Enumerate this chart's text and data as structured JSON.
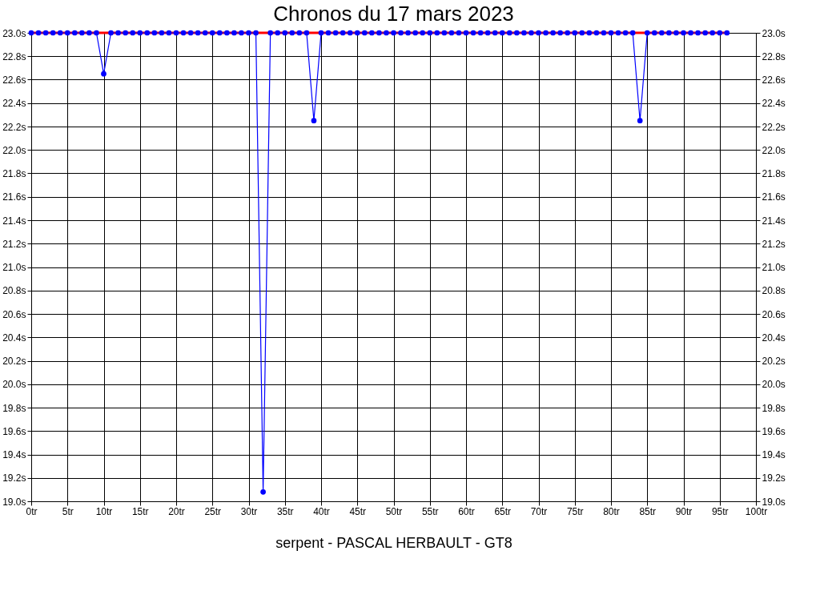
{
  "chart_data": {
    "type": "line",
    "title": "Chronos du 17 mars 2023",
    "xlabel": "serpent - PASCAL HERBAULT - GT8",
    "x": [
      0,
      1,
      2,
      3,
      4,
      5,
      6,
      7,
      8,
      9,
      10,
      11,
      12,
      13,
      14,
      15,
      16,
      17,
      18,
      19,
      20,
      21,
      22,
      23,
      24,
      25,
      26,
      27,
      28,
      29,
      30,
      31,
      32,
      33,
      34,
      35,
      36,
      37,
      38,
      39,
      40,
      41,
      42,
      43,
      44,
      45,
      46,
      47,
      48,
      49,
      50,
      51,
      52,
      53,
      54,
      55,
      56,
      57,
      58,
      59,
      60,
      61,
      62,
      63,
      64,
      65,
      66,
      67,
      68,
      69,
      70,
      71,
      72,
      73,
      74,
      75,
      76,
      77,
      78,
      79,
      80,
      81,
      82,
      83,
      84,
      85,
      86,
      87,
      88,
      89,
      90,
      91,
      92,
      93,
      94,
      95,
      96
    ],
    "series": [
      {
        "color": "#ff0000",
        "marker": "none",
        "values": [
          23.0,
          23.0,
          23.0,
          23.0,
          23.0,
          23.0,
          23.0,
          23.0,
          23.0,
          23.0,
          23.0,
          23.0,
          23.0,
          23.0,
          23.0,
          23.0,
          23.0,
          23.0,
          23.0,
          23.0,
          23.0,
          23.0,
          23.0,
          23.0,
          23.0,
          23.0,
          23.0,
          23.0,
          23.0,
          23.0,
          23.0,
          23.0,
          23.0,
          23.0,
          23.0,
          23.0,
          23.0,
          23.0,
          23.0,
          23.0,
          23.0,
          23.0,
          23.0,
          23.0,
          23.0,
          23.0,
          23.0,
          23.0,
          23.0,
          23.0,
          23.0,
          23.0,
          23.0,
          23.0,
          23.0,
          23.0,
          23.0,
          23.0,
          23.0,
          23.0,
          23.0,
          23.0,
          23.0,
          23.0,
          23.0,
          23.0,
          23.0,
          23.0,
          23.0,
          23.0,
          23.0,
          23.0,
          23.0,
          23.0,
          23.0,
          23.0,
          23.0,
          23.0,
          23.0,
          23.0,
          23.0,
          23.0,
          23.0,
          23.0,
          23.0,
          23.0,
          23.0,
          23.0,
          23.0,
          23.0,
          23.0,
          23.0,
          23.0,
          23.0,
          23.0,
          23.0,
          23.0
        ]
      },
      {
        "color": "#0000ff",
        "values": [
          23.0,
          23.0,
          23.0,
          23.0,
          23.0,
          23.0,
          23.0,
          23.0,
          23.0,
          23.0,
          22.65,
          23.0,
          23.0,
          23.0,
          23.0,
          23.0,
          23.0,
          23.0,
          23.0,
          23.0,
          23.0,
          23.0,
          23.0,
          23.0,
          23.0,
          23.0,
          23.0,
          23.0,
          23.0,
          23.0,
          23.0,
          23.0,
          19.08,
          23.0,
          23.0,
          23.0,
          23.0,
          23.0,
          23.0,
          22.25,
          23.0,
          23.0,
          23.0,
          23.0,
          23.0,
          23.0,
          23.0,
          23.0,
          23.0,
          23.0,
          23.0,
          23.0,
          23.0,
          23.0,
          23.0,
          23.0,
          23.0,
          23.0,
          23.0,
          23.0,
          23.0,
          23.0,
          23.0,
          23.0,
          23.0,
          23.0,
          23.0,
          23.0,
          23.0,
          23.0,
          23.0,
          23.0,
          23.0,
          23.0,
          23.0,
          23.0,
          23.0,
          23.0,
          23.0,
          23.0,
          23.0,
          23.0,
          23.0,
          23.0,
          22.25,
          23.0,
          23.0,
          23.0,
          23.0,
          23.0,
          23.0,
          23.0,
          23.0,
          23.0,
          23.0,
          23.0,
          23.0
        ]
      }
    ],
    "marker": "circle",
    "line_style": "solid",
    "grid": true,
    "xlim": [
      0,
      100
    ],
    "xticks": [
      {
        "value": 0,
        "label": "0tr"
      },
      {
        "value": 5,
        "label": "5tr"
      },
      {
        "value": 10,
        "label": "10tr"
      },
      {
        "value": 15,
        "label": "15tr"
      },
      {
        "value": 20,
        "label": "20tr"
      },
      {
        "value": 25,
        "label": "25tr"
      },
      {
        "value": 30,
        "label": "30tr"
      },
      {
        "value": 35,
        "label": "35tr"
      },
      {
        "value": 40,
        "label": "40tr"
      },
      {
        "value": 45,
        "label": "45tr"
      },
      {
        "value": 50,
        "label": "50tr"
      },
      {
        "value": 55,
        "label": "55tr"
      },
      {
        "value": 60,
        "label": "60tr"
      },
      {
        "value": 65,
        "label": "65tr"
      },
      {
        "value": 70,
        "label": "70tr"
      },
      {
        "value": 75,
        "label": "75tr"
      },
      {
        "value": 80,
        "label": "80tr"
      },
      {
        "value": 85,
        "label": "85tr"
      },
      {
        "value": 90,
        "label": "90tr"
      },
      {
        "value": 95,
        "label": "95tr"
      },
      {
        "value": 100,
        "label": "100tr"
      }
    ],
    "ylim": [
      19.0,
      23.0
    ],
    "yticks": [
      {
        "value": 19.0,
        "label": "19.0s"
      },
      {
        "value": 19.2,
        "label": "19.2s"
      },
      {
        "value": 19.4,
        "label": "19.4s"
      },
      {
        "value": 19.6,
        "label": "19.6s"
      },
      {
        "value": 19.8,
        "label": "19.8s"
      },
      {
        "value": 20.0,
        "label": "20.0s"
      },
      {
        "value": 20.2,
        "label": "20.2s"
      },
      {
        "value": 20.4,
        "label": "20.4s"
      },
      {
        "value": 20.6,
        "label": "20.6s"
      },
      {
        "value": 20.8,
        "label": "20.8s"
      },
      {
        "value": 21.0,
        "label": "21.0s"
      },
      {
        "value": 21.2,
        "label": "21.2s"
      },
      {
        "value": 21.4,
        "label": "21.4s"
      },
      {
        "value": 21.6,
        "label": "21.6s"
      },
      {
        "value": 21.8,
        "label": "21.8s"
      },
      {
        "value": 22.0,
        "label": "22.0s"
      },
      {
        "value": 22.2,
        "label": "22.2s"
      },
      {
        "value": 22.4,
        "label": "22.4s"
      },
      {
        "value": 22.6,
        "label": "22.6s"
      },
      {
        "value": 22.8,
        "label": "22.8s"
      },
      {
        "value": 23.0,
        "label": "23.0s"
      }
    ],
    "y2lim": [
      19.0,
      23.0
    ],
    "y2ticks": [
      {
        "value": 19.0,
        "label": "19.0s"
      },
      {
        "value": 19.2,
        "label": "19.2s"
      },
      {
        "value": 19.4,
        "label": "19.4s"
      },
      {
        "value": 19.6,
        "label": "19.6s"
      },
      {
        "value": 19.8,
        "label": "19.8s"
      },
      {
        "value": 20.0,
        "label": "20.0s"
      },
      {
        "value": 20.2,
        "label": "20.2s"
      },
      {
        "value": 20.4,
        "label": "20.4s"
      },
      {
        "value": 20.6,
        "label": "20.6s"
      },
      {
        "value": 20.8,
        "label": "20.8s"
      },
      {
        "value": 21.0,
        "label": "21.0s"
      },
      {
        "value": 21.2,
        "label": "21.2s"
      },
      {
        "value": 21.4,
        "label": "21.4s"
      },
      {
        "value": 21.6,
        "label": "21.6s"
      },
      {
        "value": 21.8,
        "label": "21.8s"
      },
      {
        "value": 22.0,
        "label": "22.0s"
      },
      {
        "value": 22.2,
        "label": "22.2s"
      },
      {
        "value": 22.4,
        "label": "22.4s"
      },
      {
        "value": 22.6,
        "label": "22.6s"
      },
      {
        "value": 22.8,
        "label": "22.8s"
      },
      {
        "value": 23.0,
        "label": "23.0s"
      }
    ]
  }
}
